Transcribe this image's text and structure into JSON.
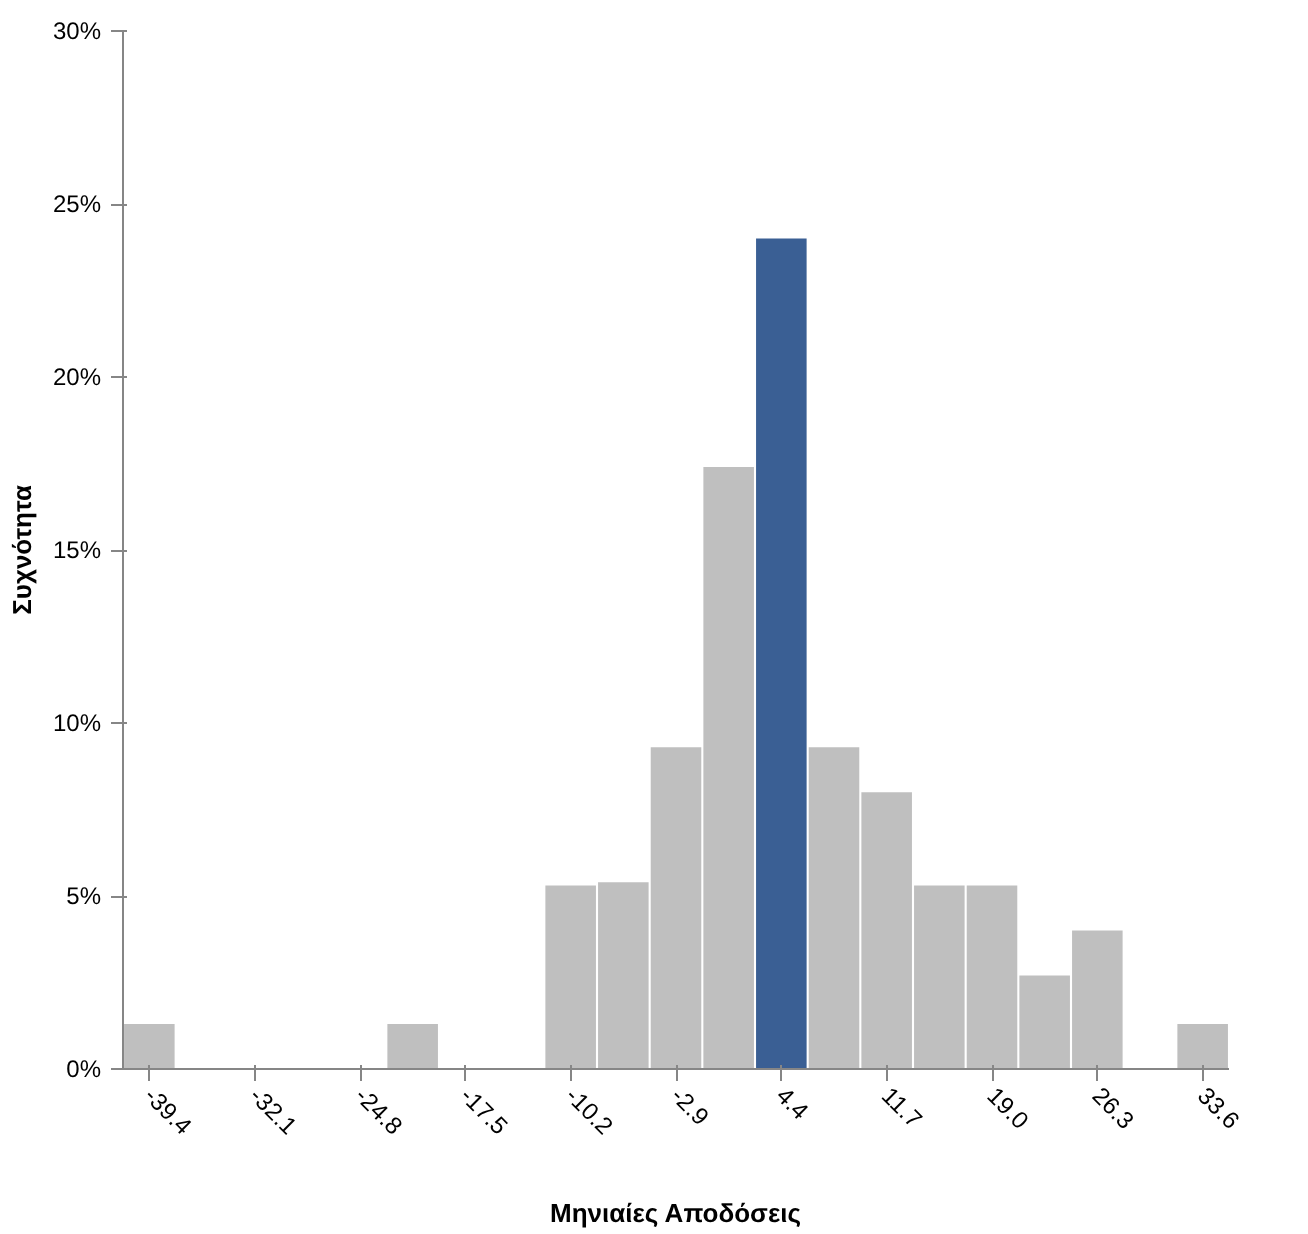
{
  "chart_data": {
    "type": "bar",
    "xlabel": "Μηνιαίες Αποδόσεις",
    "ylabel": "Συχνότητα",
    "categories": [
      "-39.4",
      null,
      "-32.1",
      null,
      "-24.8",
      null,
      "-17.5",
      null,
      "-10.2",
      null,
      "-2.9",
      null,
      "4.4",
      null,
      "11.7",
      null,
      "19.0",
      null,
      "26.3",
      null,
      "33.6"
    ],
    "values": [
      1.3,
      0,
      0,
      0,
      0,
      1.3,
      0,
      0,
      5.3,
      5.4,
      9.3,
      17.4,
      24.0,
      9.3,
      8.0,
      5.3,
      5.3,
      2.7,
      4.0,
      0,
      1.3
    ],
    "colors": [
      "#bfbfbf",
      "#bfbfbf",
      "#bfbfbf",
      "#bfbfbf",
      "#bfbfbf",
      "#bfbfbf",
      "#bfbfbf",
      "#bfbfbf",
      "#bfbfbf",
      "#bfbfbf",
      "#bfbfbf",
      "#bfbfbf",
      "#3a5f94",
      "#bfbfbf",
      "#bfbfbf",
      "#bfbfbf",
      "#bfbfbf",
      "#bfbfbf",
      "#bfbfbf",
      "#bfbfbf",
      "#bfbfbf"
    ],
    "ylim": [
      0,
      30
    ],
    "yticks": [
      {
        "value": 0,
        "label": "0%"
      },
      {
        "value": 5,
        "label": "5%"
      },
      {
        "value": 10,
        "label": "10%"
      },
      {
        "value": 15,
        "label": "15%"
      },
      {
        "value": 20,
        "label": "20%"
      },
      {
        "value": 25,
        "label": "25%"
      },
      {
        "value": 30,
        "label": "30%"
      }
    ],
    "grid": false
  }
}
